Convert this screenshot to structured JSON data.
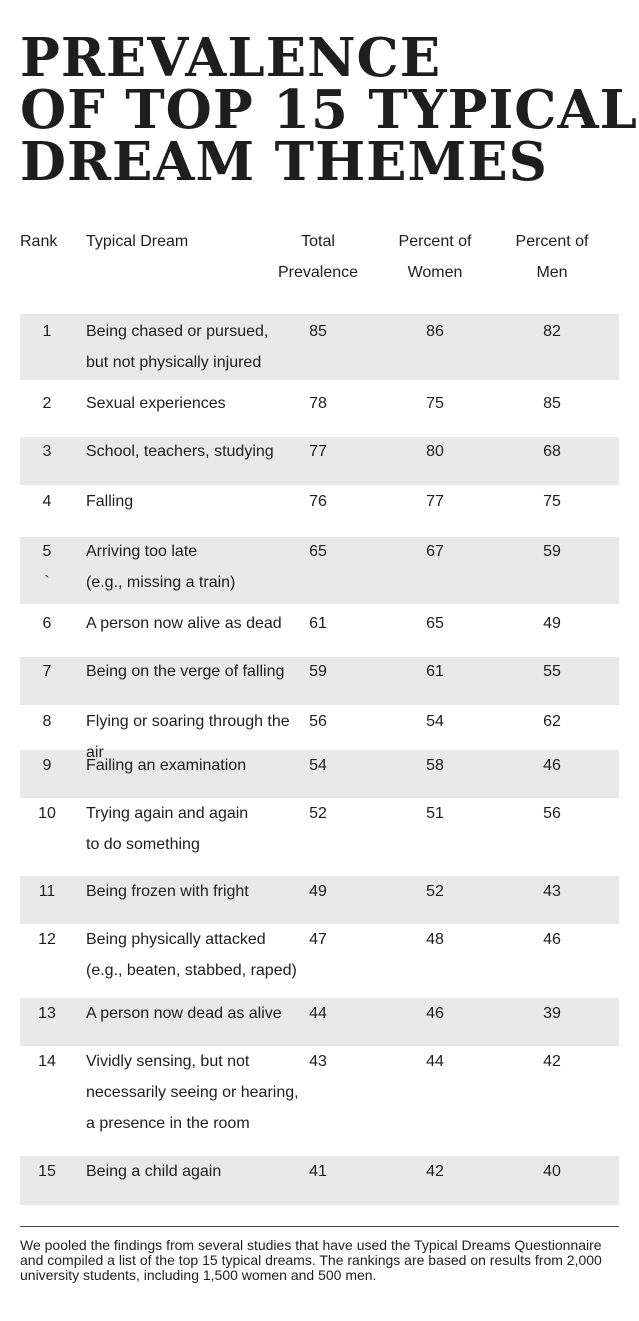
{
  "title_lines": [
    "Prevalence",
    "of Top 15 Typical",
    "Dream Themes"
  ],
  "headers": {
    "rank": "Rank",
    "theme": "Typical Dream",
    "total": "Total\nPrevalence",
    "women": "Percent of\nWomen",
    "men": "Percent of\nMen"
  },
  "chart_data": {
    "type": "table",
    "columns": [
      "Rank",
      "Typical Dream",
      "Total Prevalence",
      "Percent of Women",
      "Percent of Men"
    ],
    "rows": [
      {
        "rank": "1",
        "theme": "Being chased or pursued,\nbut not physically injured",
        "total": 85,
        "women": 86,
        "men": 82
      },
      {
        "rank": "2",
        "theme": "Sexual experiences",
        "total": 78,
        "women": 75,
        "men": 85
      },
      {
        "rank": "3",
        "theme": "School, teachers, studying",
        "total": 77,
        "women": 80,
        "men": 68
      },
      {
        "rank": "4",
        "theme": "Falling",
        "total": 76,
        "women": 77,
        "men": 75
      },
      {
        "rank": "5\n`",
        "theme": "Arriving too late\n(e.g., missing a train)",
        "total": 65,
        "women": 67,
        "men": 59
      },
      {
        "rank": "6",
        "theme": "A person now alive as dead",
        "total": 61,
        "women": 65,
        "men": 49
      },
      {
        "rank": "7",
        "theme": "Being on the verge of falling",
        "total": 59,
        "women": 61,
        "men": 55
      },
      {
        "rank": "8",
        "theme": "Flying or soaring through the air",
        "total": 56,
        "women": 54,
        "men": 62
      },
      {
        "rank": "9",
        "theme": "Failing an examination",
        "total": 54,
        "women": 58,
        "men": 46
      },
      {
        "rank": "10",
        "theme": "Trying again and again\nto do something",
        "total": 52,
        "women": 51,
        "men": 56
      },
      {
        "rank": "11",
        "theme": "Being frozen with fright",
        "total": 49,
        "women": 52,
        "men": 43
      },
      {
        "rank": "12",
        "theme": "Being physically attacked\n(e.g., beaten, stabbed, raped)",
        "total": 47,
        "women": 48,
        "men": 46
      },
      {
        "rank": "13",
        "theme": "A person now dead as alive",
        "total": 44,
        "women": 46,
        "men": 39
      },
      {
        "rank": "14",
        "theme": "Vividly sensing, but not\nnecessarily seeing or hearing,\na presence in the room",
        "total": 43,
        "women": 44,
        "men": 42
      },
      {
        "rank": "15",
        "theme": "Being a child again",
        "total": 41,
        "women": 42,
        "men": 40
      }
    ]
  },
  "footnote": "We pooled the findings from several studies that have used the Typical Dreams Questionnaire and compiled a list of the top 15 typical dreams. The rankings are based on results from 2,000 university students, including 1,500 women and 500 men."
}
